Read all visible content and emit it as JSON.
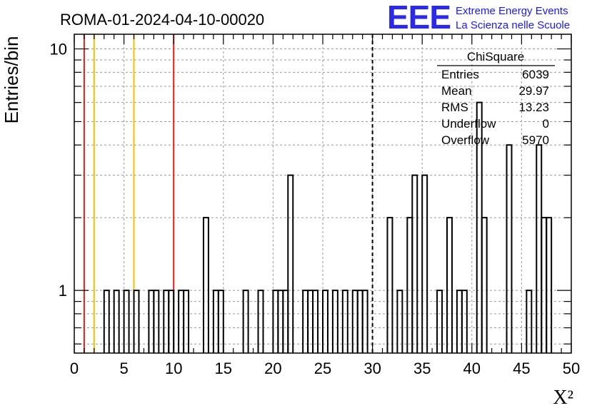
{
  "title": "ROMA-01-2024-04-10-00020",
  "logo": {
    "mark": "EEE",
    "line1": "Extreme Energy Events",
    "line2": "La Scienza nelle Scuole",
    "color": "#1a1aff"
  },
  "stats_box": {
    "name": "ChiSquare",
    "rows": [
      {
        "label": "Entries",
        "value": "6039"
      },
      {
        "label": "Mean",
        "value": "29.97"
      },
      {
        "label": "RMS",
        "value": "13.23"
      },
      {
        "label": "Underflow",
        "value": "0"
      },
      {
        "label": "Overflow",
        "value": "5970"
      }
    ]
  },
  "chart_data": {
    "type": "bar",
    "style": "step-histogram",
    "title": "ROMA-01-2024-04-10-00020",
    "xlabel": "X²",
    "ylabel": "Entries/bin",
    "xlim": [
      0,
      50
    ],
    "ylim": [
      0.55,
      11.5
    ],
    "yscale": "log",
    "grid": true,
    "bin_width": 0.5,
    "xticks": [
      0,
      5,
      10,
      15,
      20,
      25,
      30,
      35,
      40,
      45,
      50
    ],
    "ytick_labels": [
      {
        "value": 1,
        "label": "1"
      },
      {
        "value": 10,
        "label": "10"
      }
    ],
    "bins": [
      {
        "x": 3.0,
        "count": 1
      },
      {
        "x": 4.0,
        "count": 1
      },
      {
        "x": 5.0,
        "count": 1
      },
      {
        "x": 6.0,
        "count": 1
      },
      {
        "x": 7.5,
        "count": 1
      },
      {
        "x": 8.0,
        "count": 1
      },
      {
        "x": 9.0,
        "count": 1
      },
      {
        "x": 9.5,
        "count": 1
      },
      {
        "x": 10.5,
        "count": 1
      },
      {
        "x": 11.0,
        "count": 1
      },
      {
        "x": 13.0,
        "count": 2
      },
      {
        "x": 14.0,
        "count": 1
      },
      {
        "x": 14.5,
        "count": 1
      },
      {
        "x": 17.0,
        "count": 1
      },
      {
        "x": 18.5,
        "count": 1
      },
      {
        "x": 20.0,
        "count": 1
      },
      {
        "x": 20.5,
        "count": 1
      },
      {
        "x": 21.0,
        "count": 1
      },
      {
        "x": 21.5,
        "count": 3
      },
      {
        "x": 23.0,
        "count": 1
      },
      {
        "x": 23.5,
        "count": 1
      },
      {
        "x": 24.0,
        "count": 1
      },
      {
        "x": 25.0,
        "count": 1
      },
      {
        "x": 26.0,
        "count": 1
      },
      {
        "x": 27.0,
        "count": 1
      },
      {
        "x": 28.0,
        "count": 1
      },
      {
        "x": 28.5,
        "count": 1
      },
      {
        "x": 29.0,
        "count": 1
      },
      {
        "x": 31.5,
        "count": 2
      },
      {
        "x": 32.5,
        "count": 1
      },
      {
        "x": 33.5,
        "count": 2
      },
      {
        "x": 34.0,
        "count": 3
      },
      {
        "x": 35.0,
        "count": 3
      },
      {
        "x": 36.5,
        "count": 1
      },
      {
        "x": 37.5,
        "count": 2
      },
      {
        "x": 38.5,
        "count": 1
      },
      {
        "x": 39.0,
        "count": 1
      },
      {
        "x": 40.5,
        "count": 6
      },
      {
        "x": 41.0,
        "count": 2
      },
      {
        "x": 43.5,
        "count": 4
      },
      {
        "x": 45.5,
        "count": 1
      },
      {
        "x": 46.5,
        "count": 4
      },
      {
        "x": 47.0,
        "count": 2
      },
      {
        "x": 47.5,
        "count": 2
      }
    ],
    "reference_lines": [
      {
        "x": 1,
        "color": "#e8201c",
        "style": "solid"
      },
      {
        "x": 2,
        "color": "#f2c200",
        "style": "solid"
      },
      {
        "x": 6,
        "color": "#f2c200",
        "style": "solid"
      },
      {
        "x": 10,
        "color": "#e8201c",
        "style": "solid"
      },
      {
        "x": 30,
        "color": "#000000",
        "style": "dashed"
      }
    ]
  }
}
